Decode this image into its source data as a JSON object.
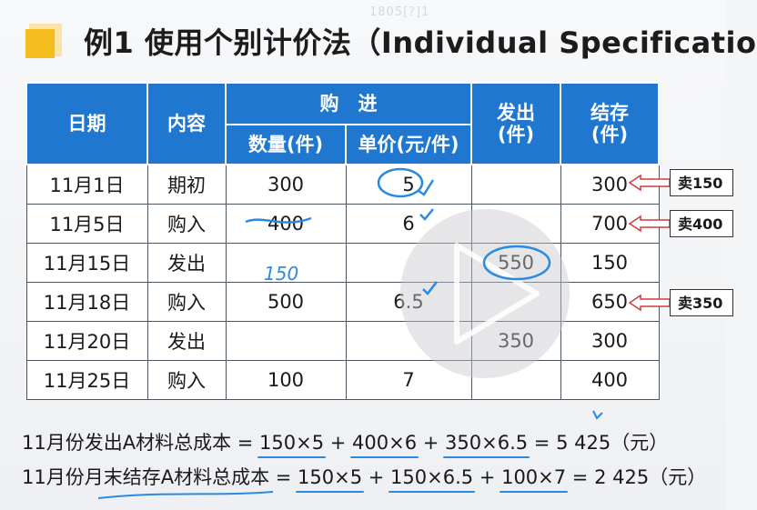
{
  "watermark": "1805[?]1",
  "title": "例1 使用个别计价法（Individual Specificatio",
  "table": {
    "headers": {
      "date": "日期",
      "content": "内容",
      "purchase": "购　进",
      "quantity": "数量(件)",
      "unit_price": "单价(元/件)",
      "issued": "发出\n(件)",
      "balance": "结存\n(件)"
    },
    "rows": [
      {
        "date": "11月1日",
        "content": "期初",
        "qty": "300",
        "price": "5",
        "issued": "",
        "balance": "300"
      },
      {
        "date": "11月5日",
        "content": "购入",
        "qty": "400",
        "price": "6",
        "issued": "",
        "balance": "700"
      },
      {
        "date": "11月15日",
        "content": "发出",
        "qty": "",
        "price": "",
        "issued": "550",
        "balance": "150"
      },
      {
        "date": "11月18日",
        "content": "购入",
        "qty": "500",
        "price": "6.5",
        "issued": "",
        "balance": "650"
      },
      {
        "date": "11月20日",
        "content": "发出",
        "qty": "",
        "price": "",
        "issued": "350",
        "balance": "300"
      },
      {
        "date": "11月25日",
        "content": "购入",
        "qty": "100",
        "price": "7",
        "issued": "",
        "balance": "400"
      }
    ]
  },
  "side_tags": [
    "卖150",
    "卖400",
    "卖350"
  ],
  "handwriting": {
    "note_150": "150"
  },
  "formula1": {
    "prefix": "11月份发出A材料总成本 = ",
    "term1": "150×5",
    "plus1": " + ",
    "term2": "400×6",
    "plus2": " + ",
    "term3": "350×6.5",
    "result": " = 5 425（元）"
  },
  "formula2": {
    "prefix": "11月份月末结存A材料总成本 = ",
    "term1": "150×5",
    "plus1": " + ",
    "term2": "150×6.5",
    "plus2": " + ",
    "term3": "100×7",
    "result": " = 2 425（元）"
  },
  "colors": {
    "header_blue": "#1f77d0",
    "accent_yellow": "#f6bd1f",
    "annotation_blue": "#2a8ae0",
    "arrow_red": "#d23a3a"
  }
}
